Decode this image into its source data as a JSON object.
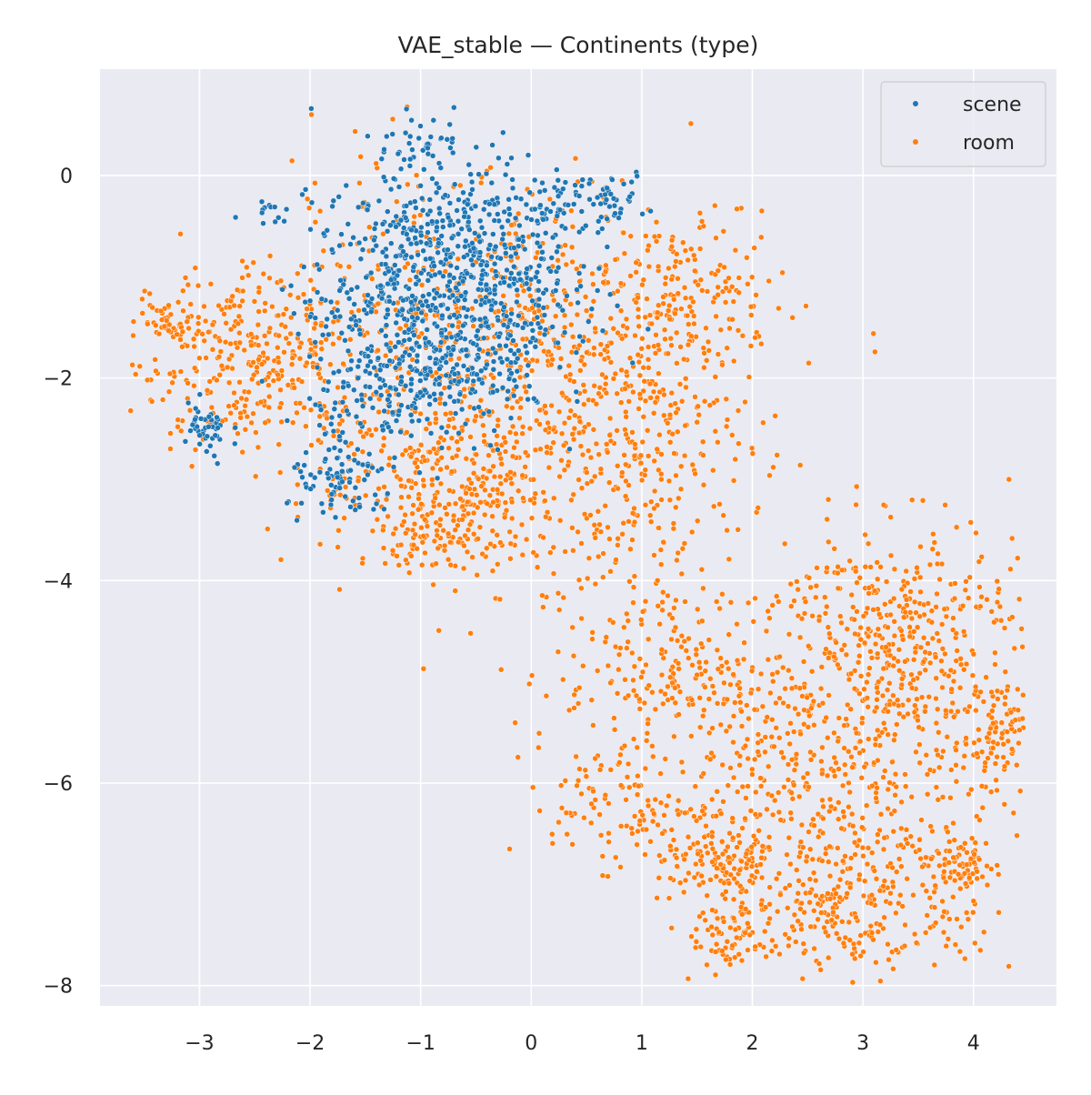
{
  "chart_data": {
    "type": "scatter",
    "title": "VAE_stable — Continents (type)",
    "xlabel": "",
    "ylabel": "",
    "xlim": [
      -3.9,
      4.75
    ],
    "ylim": [
      -8.2,
      1.05
    ],
    "xticks": [
      -3,
      -2,
      -1,
      0,
      1,
      2,
      3,
      4
    ],
    "xtick_labels": [
      "−3",
      "−2",
      "−1",
      "0",
      "1",
      "2",
      "3",
      "4"
    ],
    "yticks": [
      0,
      -2,
      -4,
      -6,
      -8
    ],
    "ytick_labels": [
      "0",
      "−2",
      "−4",
      "−6",
      "−8"
    ],
    "grid": true,
    "legend_position": "top-right",
    "series": [
      {
        "name": "scene",
        "color": "#1f77b4",
        "clusters": [
          {
            "cx": -0.9,
            "cy": -1.3,
            "sx": 0.55,
            "sy": 0.55,
            "n": 650
          },
          {
            "cx": -0.6,
            "cy": -0.5,
            "sx": 0.5,
            "sy": 0.35,
            "n": 200
          },
          {
            "cx": -1.35,
            "cy": -2.2,
            "sx": 0.3,
            "sy": 0.25,
            "n": 90
          },
          {
            "cx": -1.7,
            "cy": -3.05,
            "sx": 0.25,
            "sy": 0.2,
            "n": 80
          },
          {
            "cx": -2.95,
            "cy": -2.55,
            "sx": 0.12,
            "sy": 0.15,
            "n": 45
          },
          {
            "cx": 0.55,
            "cy": -0.2,
            "sx": 0.3,
            "sy": 0.12,
            "n": 60
          },
          {
            "cx": -2.4,
            "cy": -0.3,
            "sx": 0.1,
            "sy": 0.1,
            "n": 12
          },
          {
            "cx": -1.0,
            "cy": 0.35,
            "sx": 0.25,
            "sy": 0.12,
            "n": 40
          },
          {
            "cx": 0.1,
            "cy": -1.0,
            "sx": 0.3,
            "sy": 0.3,
            "n": 50
          },
          {
            "cx": -0.5,
            "cy": -2.0,
            "sx": 0.4,
            "sy": 0.3,
            "n": 60
          }
        ]
      },
      {
        "name": "room",
        "color": "#ff7f0e",
        "clusters": [
          {
            "cx": -2.5,
            "cy": -1.8,
            "sx": 0.55,
            "sy": 0.45,
            "n": 350
          },
          {
            "cx": -3.3,
            "cy": -1.45,
            "sx": 0.12,
            "sy": 0.1,
            "n": 40
          },
          {
            "cx": -0.8,
            "cy": -1.4,
            "sx": 0.8,
            "sy": 0.7,
            "n": 300
          },
          {
            "cx": -0.6,
            "cy": -3.0,
            "sx": 0.7,
            "sy": 0.45,
            "n": 400
          },
          {
            "cx": 0.6,
            "cy": -1.8,
            "sx": 0.7,
            "sy": 0.7,
            "n": 350
          },
          {
            "cx": 1.1,
            "cy": -2.6,
            "sx": 0.5,
            "sy": 0.5,
            "n": 150
          },
          {
            "cx": 1.5,
            "cy": -1.2,
            "sx": 0.4,
            "sy": 0.35,
            "n": 120
          },
          {
            "cx": 0.9,
            "cy": -4.3,
            "sx": 0.6,
            "sy": 0.6,
            "n": 150
          },
          {
            "cx": 3.3,
            "cy": -4.5,
            "sx": 0.55,
            "sy": 0.55,
            "n": 400
          },
          {
            "cx": 2.6,
            "cy": -6.0,
            "sx": 0.9,
            "sy": 0.7,
            "n": 550
          },
          {
            "cx": 2.9,
            "cy": -7.2,
            "sx": 0.6,
            "sy": 0.35,
            "n": 250
          },
          {
            "cx": 1.7,
            "cy": -6.8,
            "sx": 0.25,
            "sy": 0.15,
            "n": 100
          },
          {
            "cx": 1.8,
            "cy": -7.5,
            "sx": 0.15,
            "sy": 0.2,
            "n": 60
          },
          {
            "cx": 4.2,
            "cy": -5.6,
            "sx": 0.15,
            "sy": 0.25,
            "n": 80
          },
          {
            "cx": 3.9,
            "cy": -6.8,
            "sx": 0.15,
            "sy": 0.15,
            "n": 60
          },
          {
            "cx": 0.8,
            "cy": -6.2,
            "sx": 0.3,
            "sy": 0.3,
            "n": 80
          },
          {
            "cx": 1.5,
            "cy": -5.0,
            "sx": 0.4,
            "sy": 0.3,
            "n": 100
          },
          {
            "cx": -0.8,
            "cy": -3.6,
            "sx": 0.3,
            "sy": 0.15,
            "n": 60
          }
        ]
      }
    ]
  }
}
